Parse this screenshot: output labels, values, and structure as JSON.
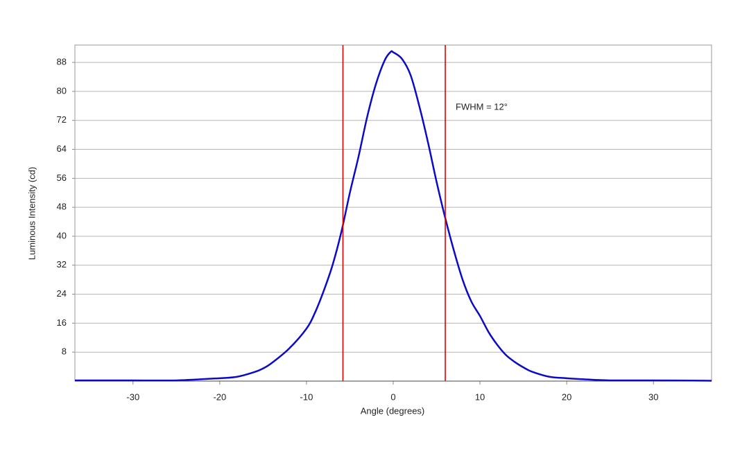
{
  "chart_data": {
    "type": "line",
    "xlabel": "Angle (degrees)",
    "ylabel": "Luminous Intensity (cd)",
    "x": [
      -36.7,
      -30,
      -25,
      -20,
      -18,
      -16,
      -15,
      -14,
      -12,
      -10,
      -9,
      -8,
      -7,
      -6,
      -5,
      -4,
      -3,
      -2,
      -1,
      -0.3,
      0,
      1,
      2,
      3,
      4,
      5,
      6,
      7,
      8,
      9,
      10,
      11,
      12,
      13,
      14,
      15,
      16,
      18,
      20,
      22,
      25,
      30,
      36.7
    ],
    "series": [
      {
        "color": "#0a0ac8",
        "values": [
          0.2,
          0.2,
          0.2,
          0.8,
          1.2,
          2.5,
          3.5,
          5,
          9,
          14.5,
          19,
          25,
          32,
          41,
          52,
          62,
          73,
          82,
          88.5,
          90.9,
          90.8,
          89,
          84.5,
          76,
          66,
          55,
          45,
          36,
          28,
          22,
          18,
          13.5,
          10,
          7.2,
          5.3,
          3.8,
          2.6,
          1.2,
          0.8,
          0.5,
          0.2,
          0.2,
          0.1
        ]
      }
    ],
    "vlines": [
      -5.8,
      6.0
    ],
    "vline_color": "#e00000",
    "annotations": [
      {
        "text": "FWHM = 12°",
        "x": 7.2,
        "y": 75.6
      }
    ],
    "xlim": [
      -36.7,
      36.7
    ],
    "xticks": [
      -30,
      -20,
      -10,
      0,
      10,
      20,
      30
    ],
    "ylim": [
      0,
      92.8
    ],
    "yticks": [
      8,
      16,
      24,
      32,
      40,
      48,
      56,
      64,
      72,
      80,
      88
    ],
    "grid": true
  }
}
